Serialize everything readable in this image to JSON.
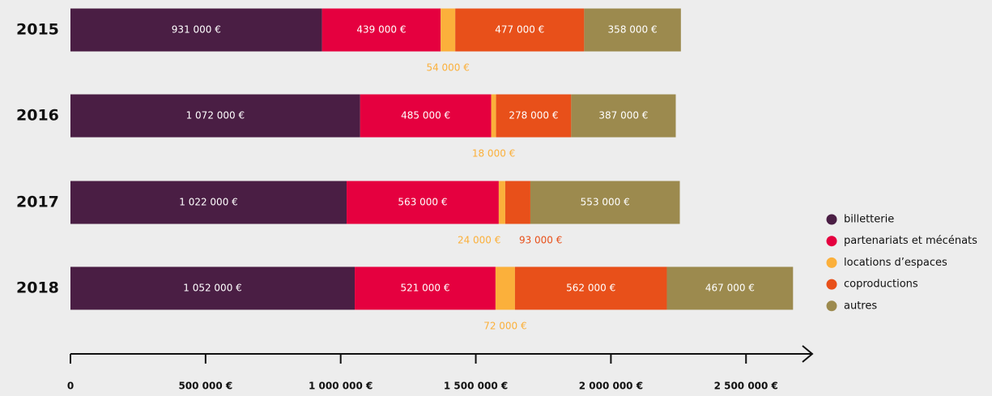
{
  "chart_data": {
    "type": "stacked-bar-horizontal",
    "categories": [
      "2015",
      "2016",
      "2017",
      "2018"
    ],
    "series": [
      {
        "name": "billetterie",
        "color": "#4a1e44",
        "values": [
          931000,
          1072000,
          1022000,
          1052000
        ],
        "value_labels": [
          "931 000 €",
          "1 072 000 €",
          "1 022 000 €",
          "1 052 000 €"
        ]
      },
      {
        "name": "partenariats et mécénats",
        "color": "#e5003f",
        "values": [
          439000,
          485000,
          563000,
          521000
        ],
        "value_labels": [
          "439 000 €",
          "485 000 €",
          "563 000 €",
          "521 000 €"
        ]
      },
      {
        "name": "locations d’espaces",
        "color": "#fbb03b",
        "values": [
          54000,
          18000,
          24000,
          72000
        ],
        "value_labels": [
          "54 000 €",
          "18 000 €",
          "24 000 €",
          "72 000 €"
        ]
      },
      {
        "name": "coproductions",
        "color": "#e8501a",
        "values": [
          477000,
          278000,
          93000,
          562000
        ],
        "value_labels": [
          "477 000 €",
          "278 000 €",
          "93 000 €",
          "562 000 €"
        ]
      },
      {
        "name": "autres",
        "color": "#9c8a4e",
        "values": [
          358000,
          387000,
          553000,
          467000
        ],
        "value_labels": [
          "358 000 €",
          "387 000 €",
          "553 000 €",
          "467 000 €"
        ]
      }
    ],
    "xlim": [
      0,
      2745000
    ],
    "xticks": [
      0,
      {
        "value": 500000,
        "label": "500 000 €"
      },
      {
        "value": 1000000,
        "label": "1 000 000 €"
      },
      {
        "value": 1500000,
        "label": "1 500 000 €"
      },
      {
        "value": 2000000,
        "label": "2 000 000 €"
      },
      {
        "value": 2500000,
        "label": "2 500 000 €"
      }
    ],
    "legend": "right"
  }
}
